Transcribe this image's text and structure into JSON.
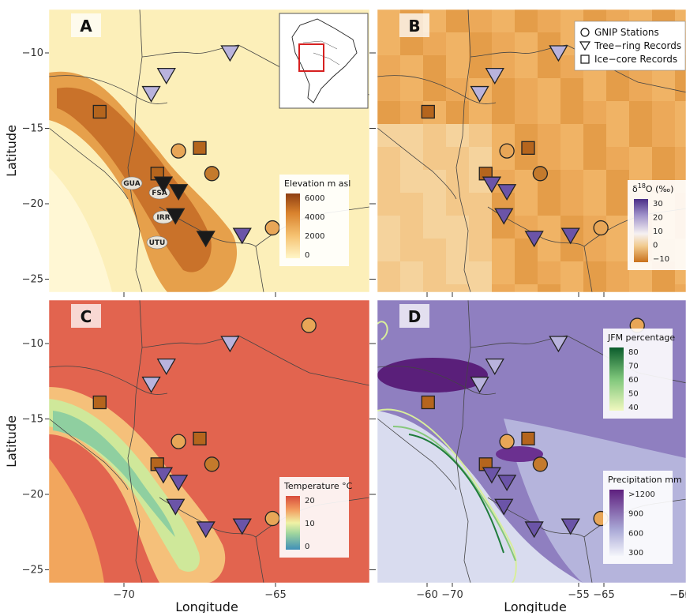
{
  "axes": {
    "xlabel": "Longitude",
    "ylabel": "Latitude",
    "xticks": [
      "−70",
      "−65",
      "−60",
      "−55"
    ],
    "yticks": [
      "−10",
      "−15",
      "−20",
      "−25"
    ]
  },
  "panels": [
    {
      "letter": "A",
      "legend_title": "Elevation m asl",
      "legend_ticks": [
        "6000",
        "4000",
        "2000",
        "0"
      ]
    },
    {
      "letter": "B",
      "legend_title_pre": "δ",
      "legend_title_sup": "18",
      "legend_title_post": "O (‰)",
      "legend_ticks": [
        "30",
        "20",
        "10",
        "0",
        "−10"
      ]
    },
    {
      "letter": "C",
      "legend_title": "Temperature °C",
      "legend_ticks": [
        "20",
        "10",
        "0"
      ]
    },
    {
      "letter": "D",
      "legend_title": "JFM percentage",
      "legend_ticks": [
        "80",
        "70",
        "60",
        "50",
        "40"
      ],
      "legend2_title": "Precipitation mm",
      "legend2_ticks": [
        ">1200",
        "900",
        "600",
        "300"
      ]
    }
  ],
  "symbol_legend": [
    {
      "label": "GNIP Stations",
      "shape": "circle"
    },
    {
      "label": "Tree−ring Records",
      "shape": "triangle"
    },
    {
      "label": "Ice−core Records",
      "shape": "square"
    }
  ],
  "site_labels": [
    "GUA",
    "FSA",
    "IRR",
    "UTU"
  ],
  "colors": {
    "gnip": "#e8a657",
    "gnip_dark": "#c47a2c",
    "ice_core": "#b5651d",
    "tree_light": "#b9b3dd",
    "tree_dark": "#6b54a8",
    "tree_black": "#1a1a1a"
  }
}
